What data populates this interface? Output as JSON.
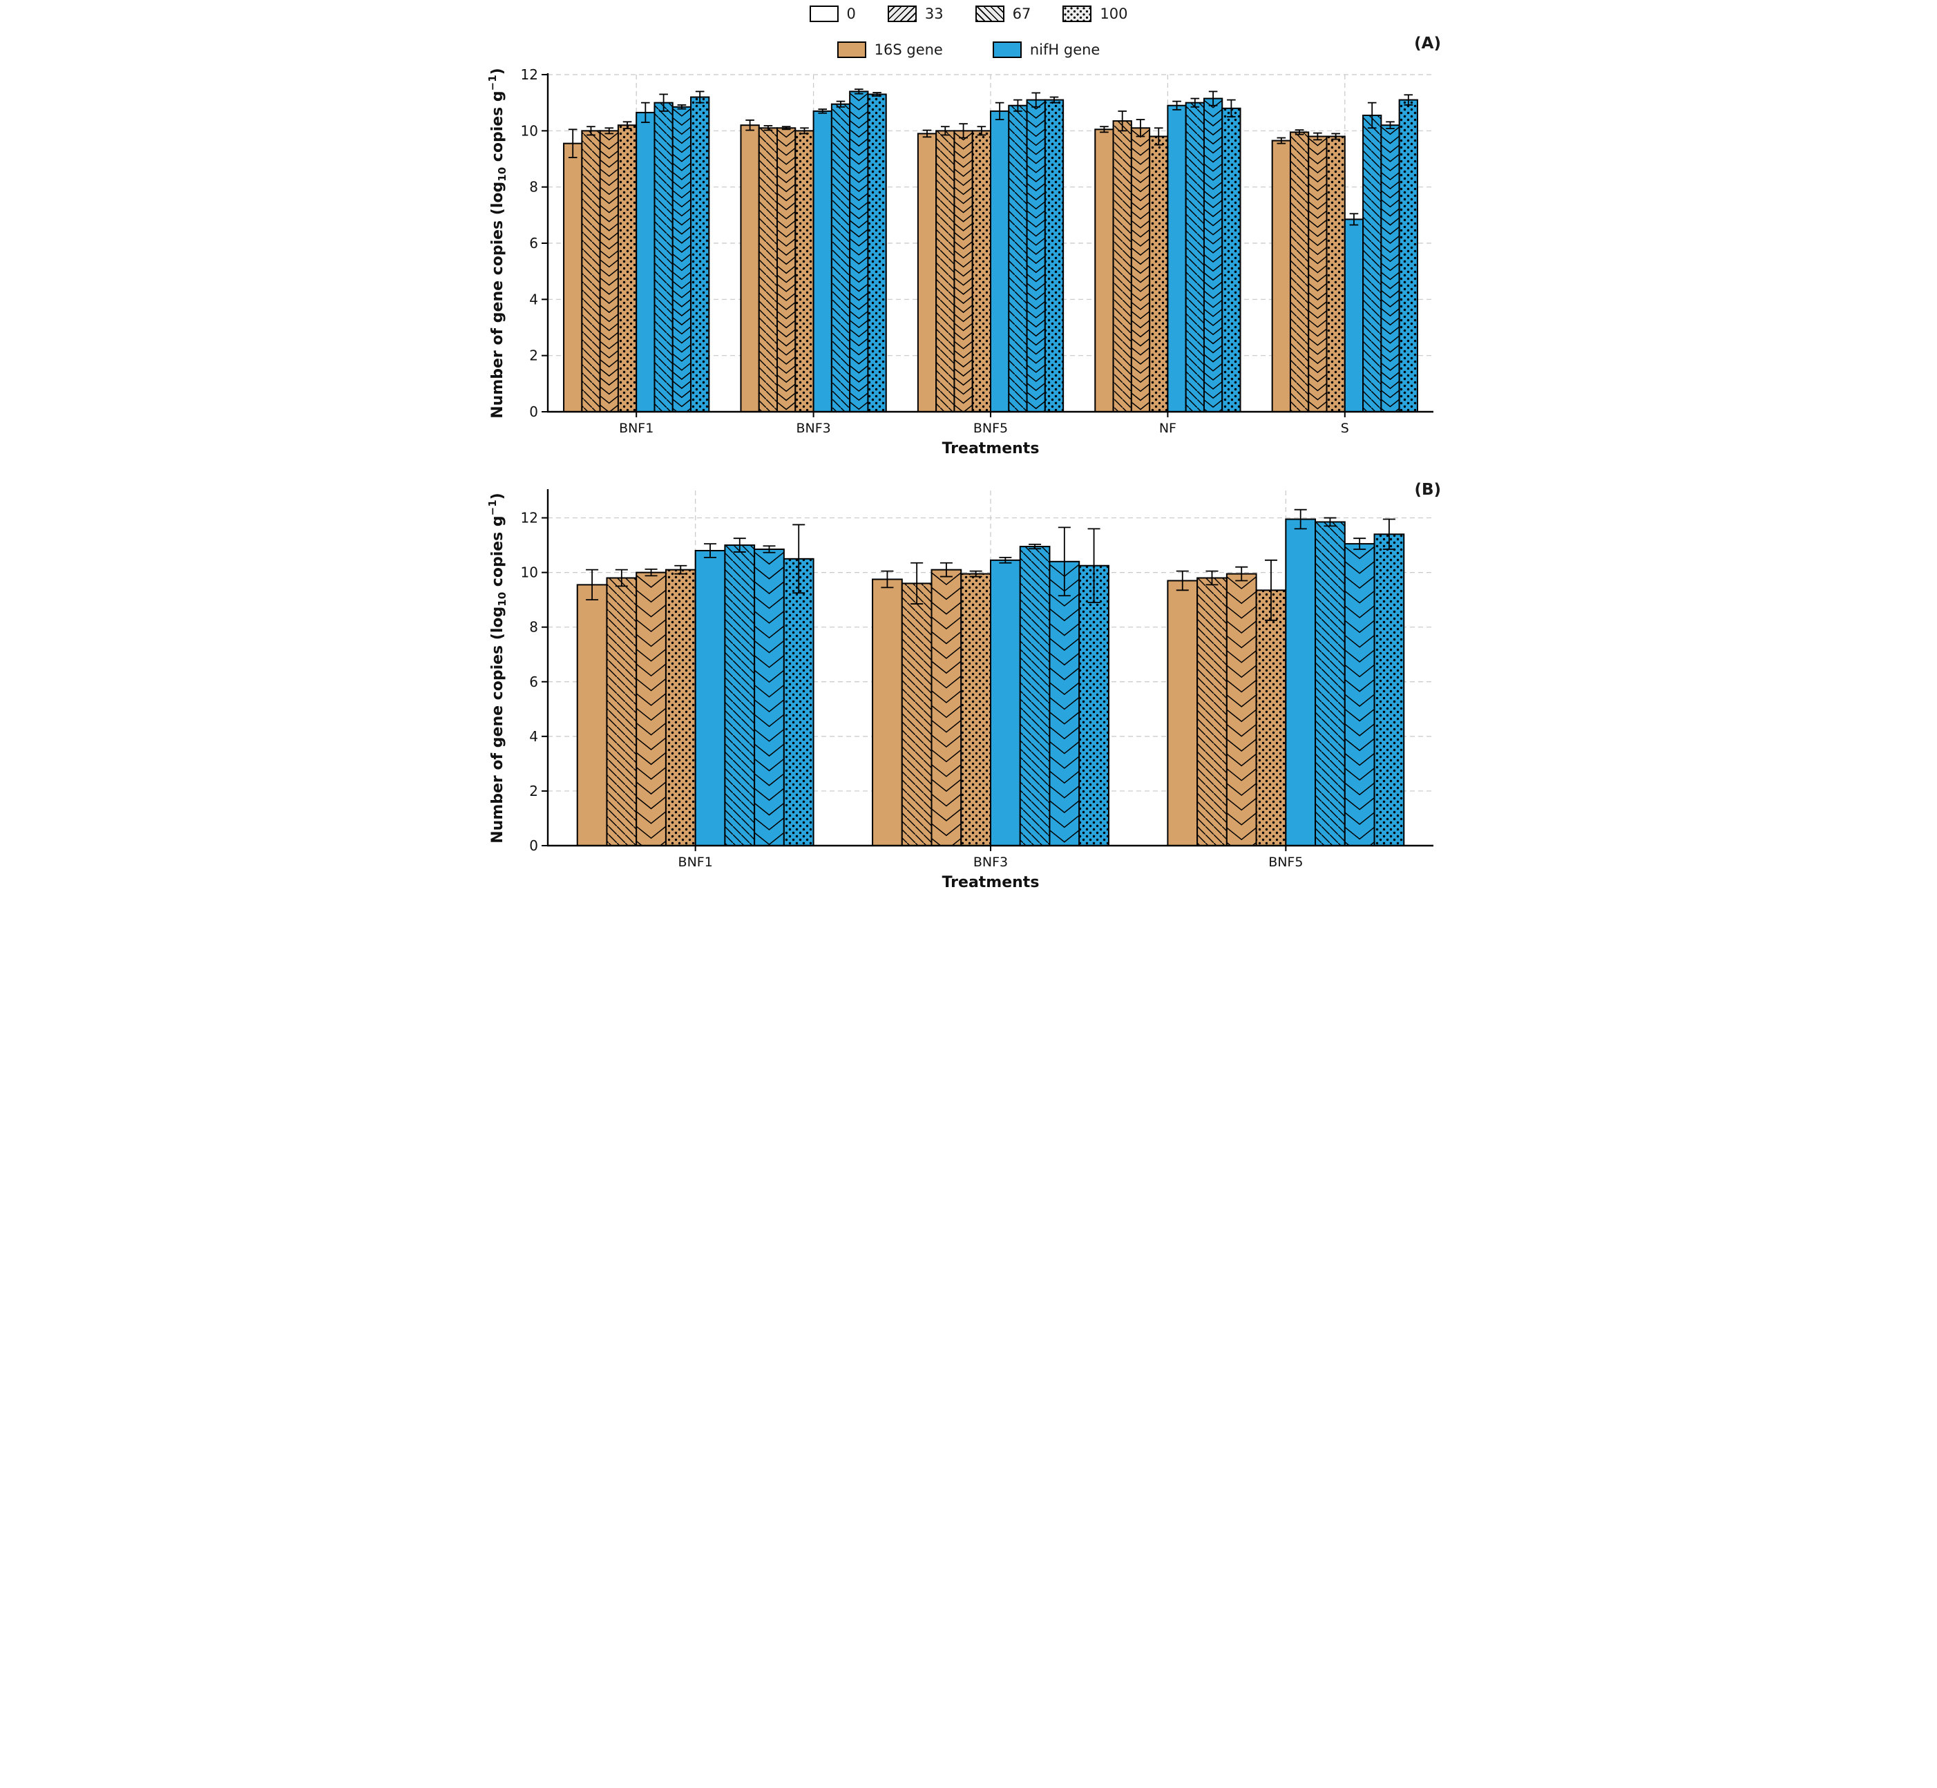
{
  "figure": {
    "background": "#ffffff",
    "panel_a_label": "(A)",
    "panel_b_label": "(B)"
  },
  "legend_hatch": {
    "items": [
      {
        "label": "0",
        "pattern": "solid"
      },
      {
        "label": "33",
        "pattern": "diagonal-forward"
      },
      {
        "label": "67",
        "pattern": "diagonal-back"
      },
      {
        "label": "100",
        "pattern": "dots"
      }
    ]
  },
  "legend_series": {
    "items": [
      {
        "label": "16S gene",
        "color": "#D7A269"
      },
      {
        "label": "nifH gene",
        "color": "#29A4DD"
      }
    ]
  },
  "axes": {
    "ylabel_parts": {
      "p1": "Number of gene copies (log",
      "sub": "10",
      "p2": " copies g",
      "sup": "−1",
      "p3": ")"
    },
    "xlabel": "Treatments"
  },
  "colors": {
    "tan": "#D7A269",
    "blue": "#29A4DD",
    "grid": "#c8c8c8",
    "axis": "#000000"
  },
  "chart_data": [
    {
      "type": "bar",
      "panel": "A",
      "xlabel": "Treatments",
      "ylabel": "Number of gene copies (log10 copies g-1)",
      "ylim": [
        0,
        12
      ],
      "yticks": [
        0,
        2,
        4,
        6,
        8,
        10,
        12
      ],
      "grid": true,
      "legend_position": "top-center",
      "categories": [
        "BNF1",
        "BNF3",
        "BNF5",
        "NF",
        "S"
      ],
      "hatch_levels": [
        "0",
        "33",
        "67",
        "100"
      ],
      "series": [
        {
          "name": "16S gene",
          "color": "#D7A269",
          "values": [
            [
              9.55,
              10.0,
              10.0,
              10.2
            ],
            [
              10.2,
              10.1,
              10.1,
              10.0
            ],
            [
              9.9,
              10.0,
              10.0,
              10.0
            ],
            [
              10.05,
              10.35,
              10.1,
              9.8
            ],
            [
              9.65,
              9.95,
              9.8,
              9.8
            ]
          ],
          "errors": [
            [
              0.5,
              0.15,
              0.1,
              0.12
            ],
            [
              0.18,
              0.08,
              0.05,
              0.1
            ],
            [
              0.12,
              0.15,
              0.25,
              0.15
            ],
            [
              0.1,
              0.35,
              0.3,
              0.3
            ],
            [
              0.1,
              0.08,
              0.12,
              0.1
            ]
          ]
        },
        {
          "name": "nifH gene",
          "color": "#29A4DD",
          "values": [
            [
              10.65,
              11.0,
              10.85,
              11.2
            ],
            [
              10.7,
              10.95,
              11.4,
              11.3
            ],
            [
              10.7,
              10.9,
              11.1,
              11.1
            ],
            [
              10.9,
              11.0,
              11.15,
              10.8
            ],
            [
              6.85,
              10.55,
              10.2,
              11.1
            ]
          ],
          "errors": [
            [
              0.35,
              0.3,
              0.07,
              0.2
            ],
            [
              0.07,
              0.1,
              0.08,
              0.06
            ],
            [
              0.3,
              0.2,
              0.25,
              0.1
            ],
            [
              0.15,
              0.15,
              0.25,
              0.3
            ],
            [
              0.2,
              0.45,
              0.12,
              0.18
            ]
          ]
        }
      ]
    },
    {
      "type": "bar",
      "panel": "B",
      "xlabel": "Treatments",
      "ylabel": "Number of gene copies (log10 copies g-1)",
      "ylim": [
        0,
        13
      ],
      "yticks": [
        0,
        2,
        4,
        6,
        8,
        10,
        12
      ],
      "grid": true,
      "legend_position": "top-center",
      "categories": [
        "BNF1",
        "BNF3",
        "BNF5"
      ],
      "hatch_levels": [
        "0",
        "33",
        "67",
        "100"
      ],
      "series": [
        {
          "name": "16S gene",
          "color": "#D7A269",
          "values": [
            [
              9.55,
              9.8,
              10.0,
              10.1
            ],
            [
              9.75,
              9.6,
              10.1,
              9.95
            ],
            [
              9.7,
              9.8,
              9.95,
              9.35
            ]
          ],
          "errors": [
            [
              0.55,
              0.3,
              0.12,
              0.15
            ],
            [
              0.3,
              0.75,
              0.25,
              0.1
            ],
            [
              0.35,
              0.25,
              0.25,
              1.1
            ]
          ]
        },
        {
          "name": "nifH gene",
          "color": "#29A4DD",
          "values": [
            [
              10.8,
              11.0,
              10.85,
              10.5
            ],
            [
              10.45,
              10.95,
              10.4,
              10.25
            ],
            [
              11.95,
              11.85,
              11.05,
              11.4
            ]
          ],
          "errors": [
            [
              0.25,
              0.25,
              0.12,
              1.25
            ],
            [
              0.1,
              0.08,
              1.25,
              1.35
            ],
            [
              0.35,
              0.15,
              0.2,
              0.55
            ]
          ]
        }
      ]
    }
  ]
}
